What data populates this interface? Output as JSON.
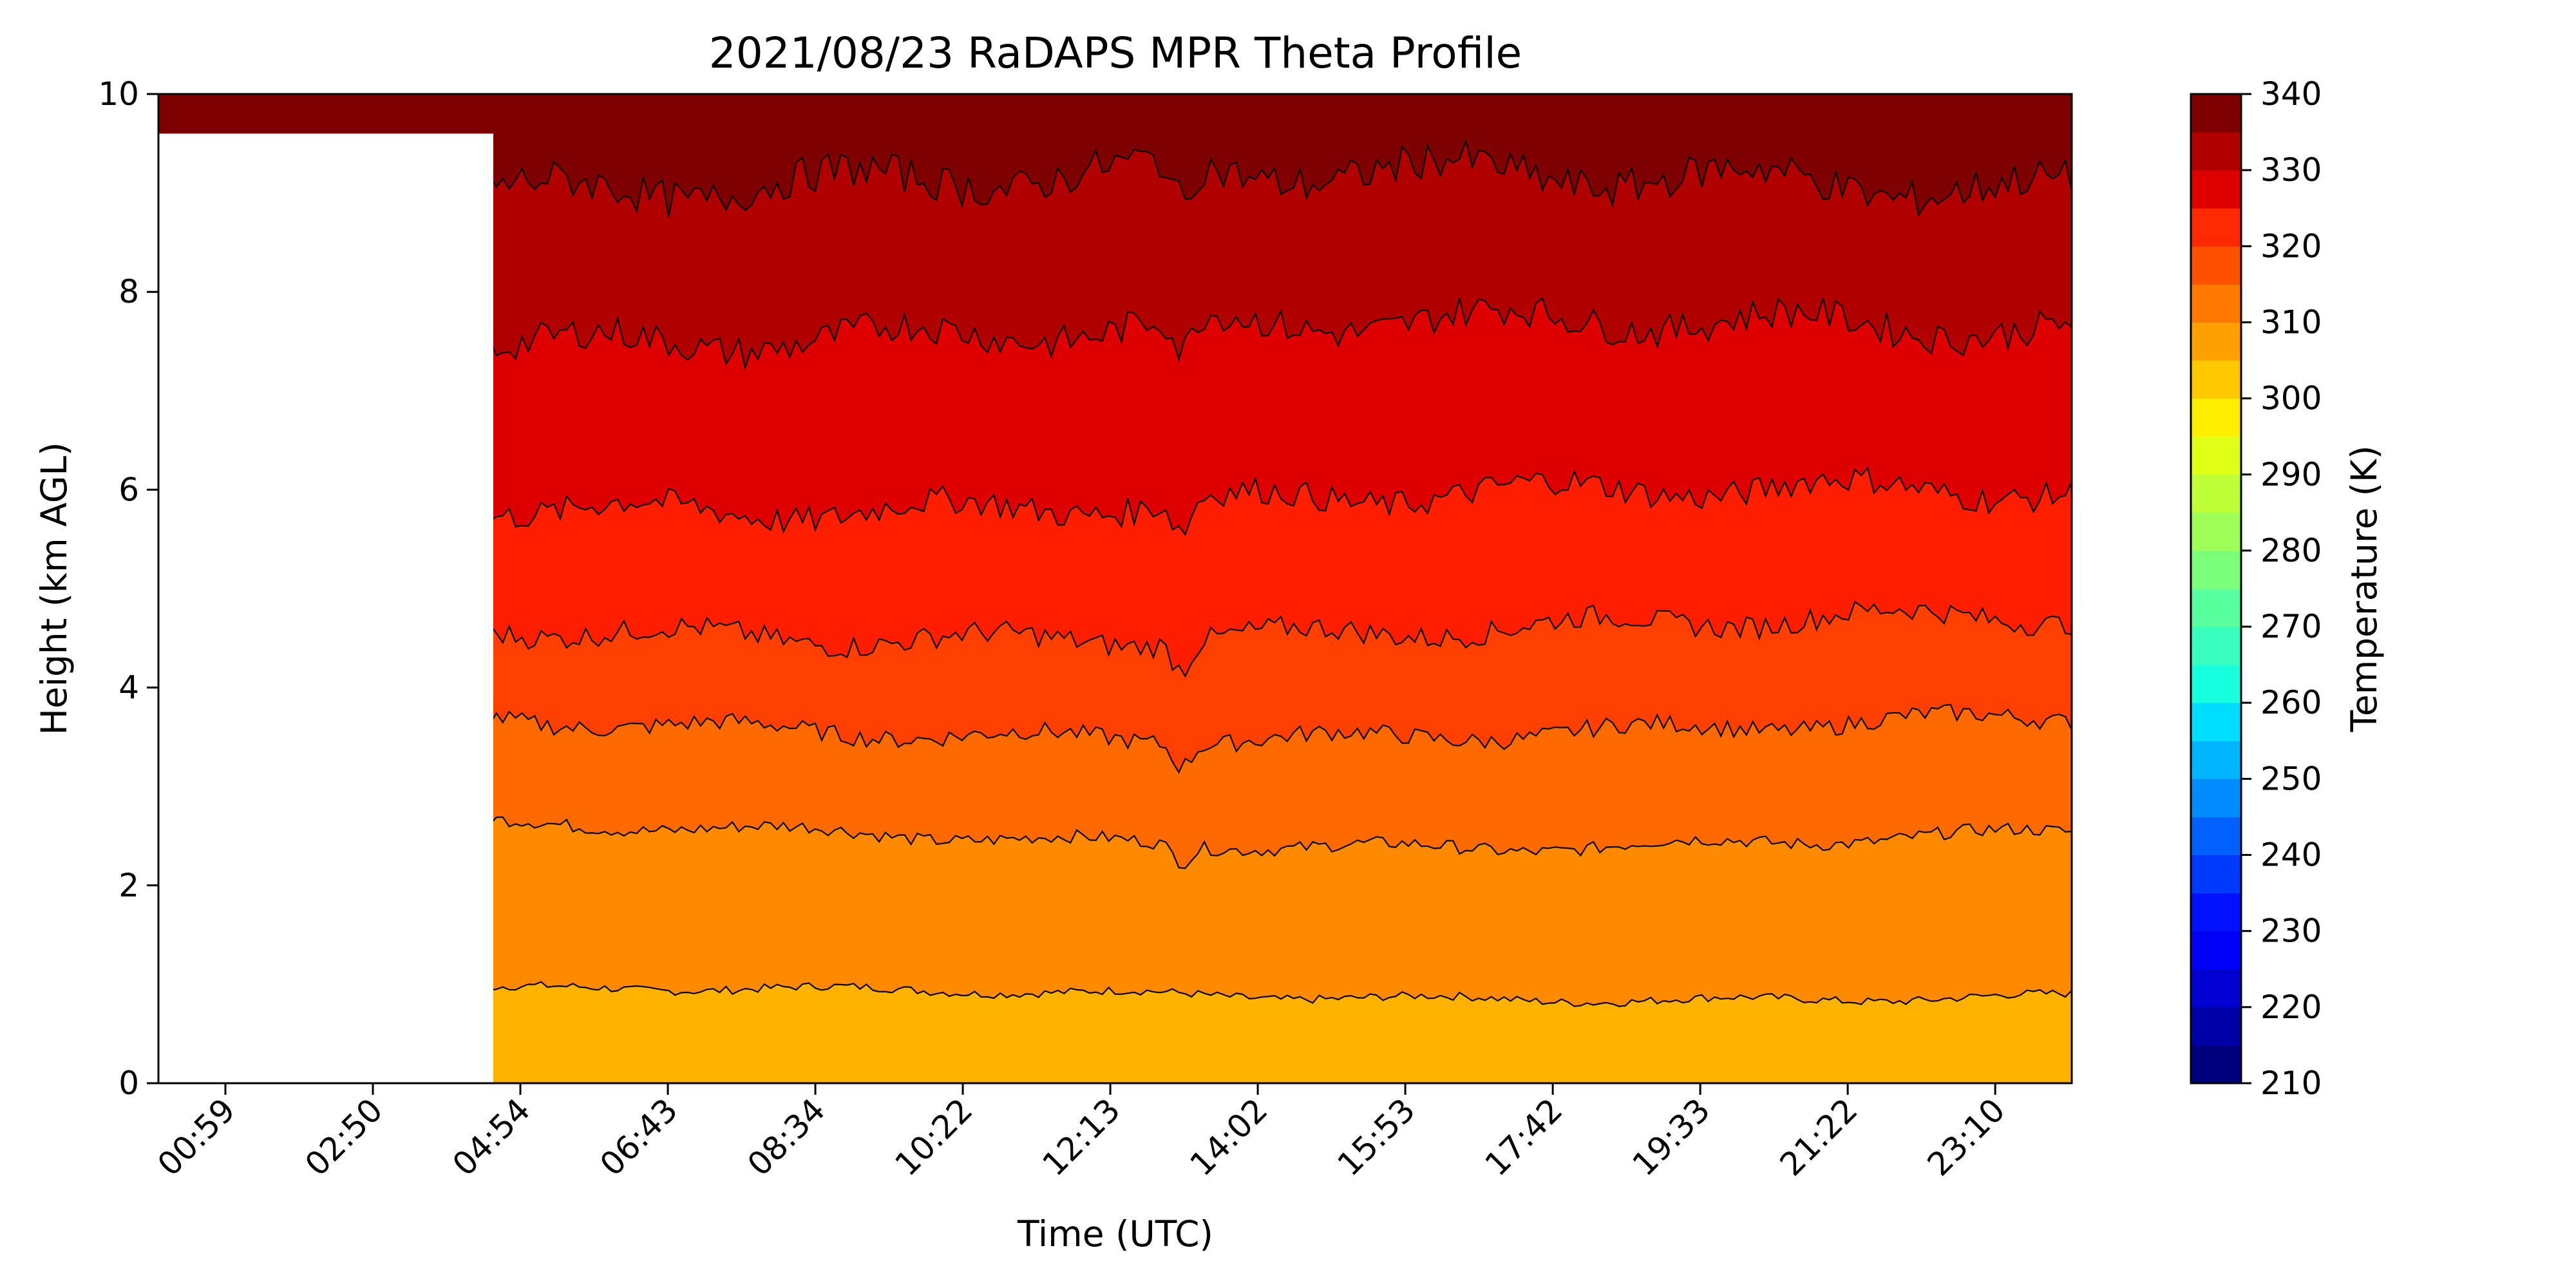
{
  "chart_data": {
    "type": "heatmap",
    "subtype": "filled-contour",
    "title": "2021/08/23 RaDAPS MPR Theta Profile",
    "xlabel": "Time (UTC)",
    "ylabel": "Height (km AGL)",
    "colorbar_label": "Temperature (K)",
    "colormap": "jet",
    "x_ticks": [
      "00:59",
      "02:50",
      "04:54",
      "06:43",
      "08:34",
      "10:22",
      "12:13",
      "14:02",
      "15:53",
      "17:42",
      "19:33",
      "21:22",
      "23:10"
    ],
    "y_ticks": [
      "0",
      "2",
      "4",
      "6",
      "8",
      "10"
    ],
    "ylim": [
      0,
      10
    ],
    "colorbar_ticks": [
      "210",
      "220",
      "230",
      "240",
      "250",
      "260",
      "270",
      "280",
      "290",
      "300",
      "310",
      "320",
      "330",
      "340"
    ],
    "clim": [
      210,
      340
    ],
    "level_step": 5,
    "colorbar_colors": [
      "#00007f",
      "#0000a8",
      "#0000d1",
      "#0000fa",
      "#0011ff",
      "#0039ff",
      "#0061ff",
      "#008bff",
      "#00b4ff",
      "#00ddff",
      "#17ffdf",
      "#38ffbf",
      "#59ff9e",
      "#7bff7b",
      "#9eff59",
      "#bfff38",
      "#dfff17",
      "#ffee00",
      "#ffc800",
      "#ffa000",
      "#ff7800",
      "#ff5000",
      "#ff2800",
      "#de0000",
      "#b10000",
      "#7f0000"
    ],
    "contour_levels": [
      {
        "theta": 305,
        "height_km": 0.9,
        "color": "#ffa000"
      },
      {
        "theta": 310,
        "height_km": 2.5,
        "color": "#ff8a00"
      },
      {
        "theta": 315,
        "height_km": 3.6,
        "color": "#ff5000"
      },
      {
        "theta": 320,
        "height_km": 4.6,
        "color": "#ff2800"
      },
      {
        "theta": 325,
        "height_km": 5.9,
        "color": "#de0000"
      },
      {
        "theta": 330,
        "height_km": 7.6,
        "color": "#b10000"
      },
      {
        "theta": 335,
        "height_km": 9.1,
        "color": "#7f0000"
      }
    ],
    "grid": false
  }
}
